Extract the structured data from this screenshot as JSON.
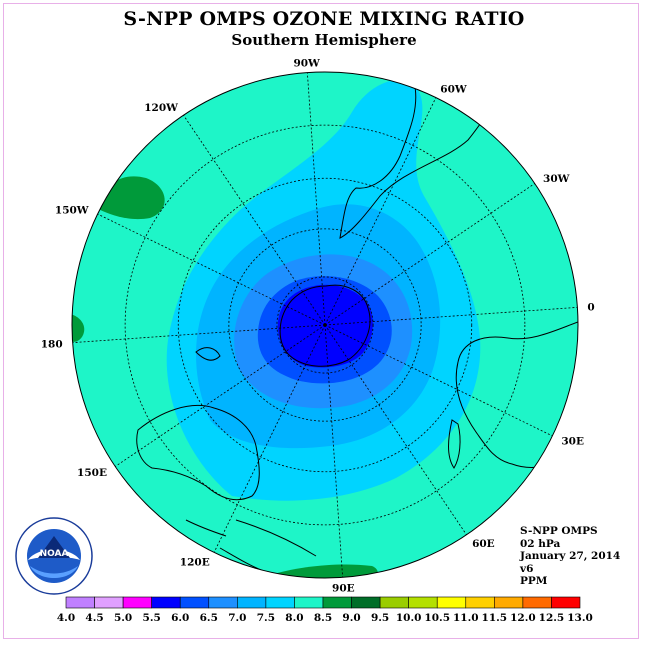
{
  "title": "S-NPP OMPS OZONE MIXING RATIO",
  "subtitle": "Southern Hemisphere",
  "map": {
    "projection": "south-polar-stereographic",
    "longitude_labels": [
      "90W",
      "60W",
      "30W",
      "0",
      "30E",
      "60E",
      "90E",
      "120E",
      "150E",
      "180",
      "150W",
      "120W"
    ],
    "colors": {
      "ocean_background": "#1ef5c8",
      "land_outline": "#000000",
      "graticule": "#000000"
    },
    "contour_levels_visible": [
      "6.0",
      "6.5",
      "7.0",
      "7.5",
      "8.0",
      "8.5"
    ]
  },
  "info": {
    "instrument": "S-NPP OMPS",
    "level": "02 hPa",
    "date": "January 27, 2014",
    "version": "v6",
    "units": "PPM"
  },
  "legend": {
    "labels": [
      "4.0",
      "4.5",
      "5.0",
      "5.5",
      "6.0",
      "6.5",
      "7.0",
      "7.5",
      "8.0",
      "8.5",
      "9.0",
      "9.5",
      "10.0",
      "10.5",
      "11.0",
      "11.5",
      "12.0",
      "12.5",
      "13.0"
    ],
    "colors": [
      "#c080ff",
      "#e0a0ff",
      "#ff00ff",
      "#0000ff",
      "#0050ff",
      "#1e90ff",
      "#00b4ff",
      "#00d4ff",
      "#1ef5c8",
      "#009a3a",
      "#006e28",
      "#9acd00",
      "#b4e000",
      "#ffff00",
      "#ffd000",
      "#ffaa00",
      "#ff6a00",
      "#ff0000",
      "#8b4a2a"
    ]
  }
}
